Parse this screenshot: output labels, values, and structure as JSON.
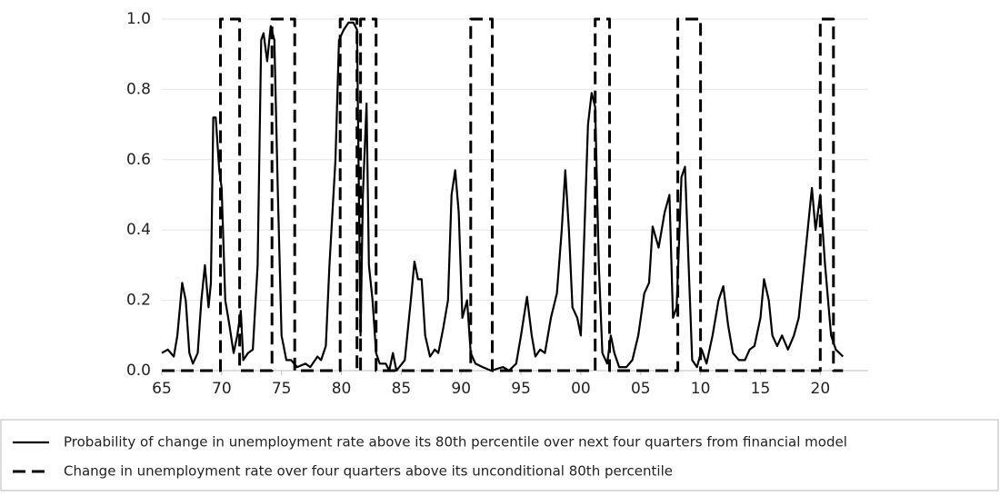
{
  "chart_data": {
    "type": "line",
    "xlim": [
      1965,
      2024
    ],
    "xticks": [
      {
        "value": 1965,
        "label": "65"
      },
      {
        "value": 1970,
        "label": "70"
      },
      {
        "value": 1975,
        "label": "75"
      },
      {
        "value": 1980,
        "label": "80"
      },
      {
        "value": 1985,
        "label": "85"
      },
      {
        "value": 1990,
        "label": "90"
      },
      {
        "value": 1995,
        "label": "95"
      },
      {
        "value": 2000,
        "label": "00"
      },
      {
        "value": 2005,
        "label": "05"
      },
      {
        "value": 2010,
        "label": "10"
      },
      {
        "value": 2015,
        "label": "15"
      },
      {
        "value": 2020,
        "label": "20"
      }
    ],
    "ylim": [
      0,
      1
    ],
    "yticks": [
      {
        "value": 0,
        "label": "0.0"
      },
      0.2,
      0.4,
      0.6,
      0.8,
      {
        "value": 1,
        "label": "1.0"
      }
    ],
    "grid": true,
    "series": [
      {
        "name": "Probability of change in unemployment rate above its 80th percentile over next four quarters from financial model",
        "color": "#000000",
        "dash": "solid",
        "x": [
          1965.0,
          1965.5,
          1966,
          1966.3,
          1966.7,
          1967,
          1967.3,
          1967.6,
          1968,
          1968.3,
          1968.6,
          1968.9,
          1969.1,
          1969.3,
          1969.5,
          1969.8,
          1970,
          1970.3,
          1970.6,
          1971,
          1971.3,
          1971.6,
          1971.8,
          1972.2,
          1972.6,
          1973,
          1973.3,
          1973.5,
          1973.8,
          1974.1,
          1974.4,
          1974.7,
          1975,
          1975.4,
          1975.8,
          1976.3,
          1977,
          1977.4,
          1978,
          1978.3,
          1978.7,
          1979,
          1979.5,
          1979.8,
          1980.2,
          1980.6,
          1981,
          1981.3,
          1981.6,
          1981.8,
          1982.1,
          1982.3,
          1982.6,
          1982.9,
          1983.2,
          1983.7,
          1984,
          1984.3,
          1984.6,
          1985.3,
          1985.8,
          1986.1,
          1986.4,
          1986.7,
          1987,
          1987.4,
          1987.8,
          1988.1,
          1988.5,
          1988.9,
          1989.2,
          1989.5,
          1989.8,
          1990.1,
          1990.5,
          1990.8,
          1991.2,
          1991.8,
          1992.5,
          1993.5,
          1994,
          1994.6,
          1995,
          1995.5,
          1995.9,
          1996.2,
          1996.6,
          1997,
          1997.5,
          1998,
          1998.4,
          1998.7,
          1999,
          1999.3,
          1999.7,
          2000,
          2000.3,
          2000.6,
          2000.9,
          2001.2,
          2001.5,
          2001.8,
          2002.2,
          2002.5,
          2002.8,
          2003.2,
          2003.8,
          2004.3,
          2004.8,
          2005.3,
          2005.7,
          2006,
          2006.5,
          2007,
          2007.4,
          2007.7,
          2008,
          2008.4,
          2008.7,
          2009,
          2009.3,
          2009.7,
          2010.1,
          2010.5,
          2011,
          2011.5,
          2011.9,
          2012.3,
          2012.7,
          2013.2,
          2013.7,
          2014.1,
          2014.5,
          2015,
          2015.3,
          2015.7,
          2016,
          2016.4,
          2016.8,
          2017.3,
          2017.8,
          2018.2,
          2018.8,
          2019.3,
          2019.6,
          2020,
          2020.4,
          2020.9,
          2021.3,
          2021.9
        ],
        "values": [
          0.05,
          0.06,
          0.04,
          0.1,
          0.25,
          0.2,
          0.05,
          0.02,
          0.05,
          0.2,
          0.3,
          0.18,
          0.25,
          0.72,
          0.72,
          0.57,
          0.52,
          0.2,
          0.14,
          0.05,
          0.1,
          0.17,
          0.03,
          0.05,
          0.06,
          0.3,
          0.94,
          0.96,
          0.88,
          0.98,
          0.94,
          0.5,
          0.1,
          0.03,
          0.03,
          0.01,
          0.02,
          0.01,
          0.04,
          0.03,
          0.07,
          0.3,
          0.6,
          0.94,
          0.97,
          0.99,
          0.99,
          0.97,
          0.1,
          0.5,
          0.76,
          0.3,
          0.2,
          0.05,
          0.02,
          0.02,
          0.0,
          0.05,
          0.0,
          0.03,
          0.2,
          0.31,
          0.26,
          0.26,
          0.1,
          0.04,
          0.06,
          0.05,
          0.12,
          0.2,
          0.5,
          0.57,
          0.45,
          0.15,
          0.2,
          0.05,
          0.02,
          0.01,
          0.0,
          0.01,
          0.0,
          0.02,
          0.1,
          0.21,
          0.1,
          0.04,
          0.06,
          0.05,
          0.15,
          0.22,
          0.4,
          0.57,
          0.4,
          0.18,
          0.15,
          0.1,
          0.4,
          0.7,
          0.79,
          0.75,
          0.3,
          0.05,
          0.02,
          0.1,
          0.05,
          0.01,
          0.01,
          0.03,
          0.1,
          0.22,
          0.25,
          0.41,
          0.35,
          0.45,
          0.5,
          0.15,
          0.18,
          0.55,
          0.58,
          0.3,
          0.03,
          0.01,
          0.06,
          0.02,
          0.1,
          0.2,
          0.24,
          0.13,
          0.05,
          0.03,
          0.03,
          0.06,
          0.07,
          0.15,
          0.26,
          0.2,
          0.1,
          0.07,
          0.1,
          0.06,
          0.1,
          0.15,
          0.35,
          0.52,
          0.4,
          0.5,
          0.3,
          0.1,
          0.06,
          0.04
        ]
      },
      {
        "name": "Change in unemployment rate over four quarters above its unconditional 80th percentile",
        "color": "#000000",
        "dash": "dashed",
        "x": [
          1965,
          1969.9,
          1969.9,
          1971.5,
          1971.5,
          1974.2,
          1974.2,
          1976.1,
          1976.1,
          1979.9,
          1979.9,
          1981.3,
          1981.3,
          1981.6,
          1981.6,
          1982.9,
          1982.9,
          1990.8,
          1990.8,
          1992.6,
          1992.6,
          2001.2,
          2001.2,
          2002.4,
          2002.4,
          2008.1,
          2008.1,
          2010,
          2010,
          2020,
          2020,
          2021.1,
          2021.1,
          2021.9
        ],
        "values": [
          0,
          0,
          1,
          1,
          0,
          0,
          1,
          1,
          0,
          0,
          1,
          1,
          0,
          0,
          1,
          1,
          0,
          0,
          1,
          1,
          0,
          0,
          1,
          1,
          0,
          0,
          1,
          1,
          0,
          0,
          1,
          1,
          0,
          0
        ]
      }
    ]
  }
}
